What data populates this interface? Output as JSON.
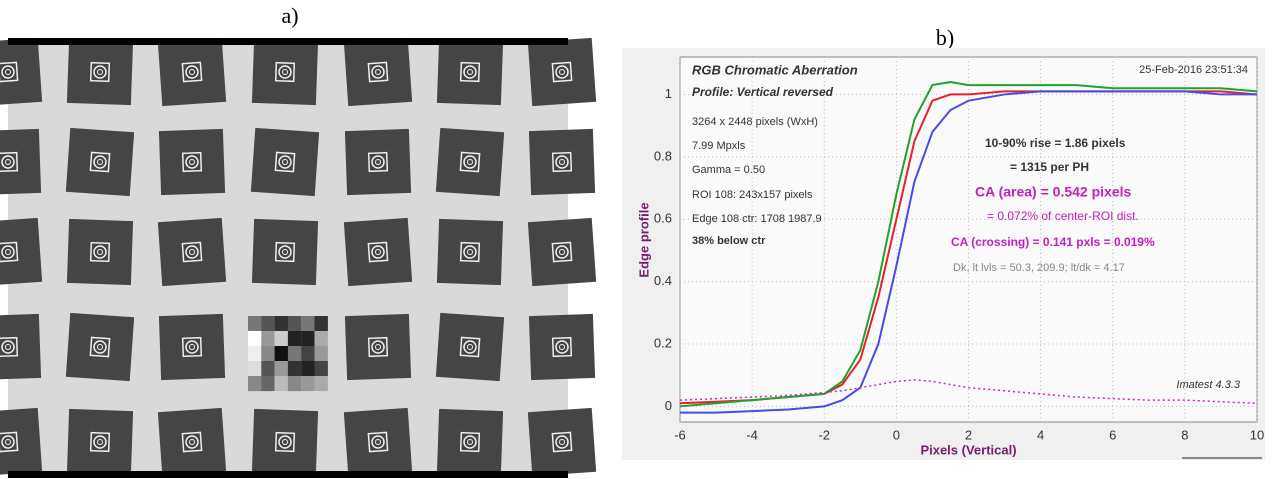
{
  "panel_labels": [
    "a)",
    "b)"
  ],
  "chart_data": {
    "type": "line",
    "title": "RGB Chromatic Aberration",
    "subtitle": "Profile: Vertical reversed",
    "xlabel": "Pixels (Vertical)",
    "ylabel": "Edge profile",
    "annotations": [
      "25-Feb-2016 23:51:34",
      "3264 x 2448 pixels (WxH)",
      "7.99 Mpxls",
      "Gamma = 0.50",
      "ROI 108: 243x157 pixels",
      "Edge 108 ctr: 1708  1987.9",
      "38% below ctr",
      "10-90% rise = 1.86 pixels",
      "= 1315 per PH",
      "CA (area) = 0.542 pixels",
      "= 0.072% of center-ROI dist.",
      "CA (crossing) = 0.141 pxls = 0.019%",
      "Dk, lt lvls = 50.3, 209.9;  lt/dk = 4.17",
      "Imatest 4.3.3"
    ],
    "x": [
      -6,
      -5,
      -4,
      -3,
      -2,
      -1.5,
      -1,
      -0.5,
      0,
      0.5,
      1,
      1.5,
      2,
      3,
      4,
      5,
      6,
      7,
      8,
      9,
      10
    ],
    "series": [
      {
        "color": "#e8202a",
        "style": "solid",
        "values": [
          0.01,
          0.015,
          0.02,
          0.03,
          0.04,
          0.07,
          0.15,
          0.35,
          0.6,
          0.85,
          0.98,
          1.0,
          1.0,
          1.01,
          1.01,
          1.01,
          1.01,
          1.01,
          1.01,
          1.01,
          1.0
        ]
      },
      {
        "color": "#1fa32a",
        "style": "solid",
        "values": [
          0.0,
          0.01,
          0.02,
          0.03,
          0.04,
          0.08,
          0.18,
          0.4,
          0.68,
          0.92,
          1.03,
          1.04,
          1.03,
          1.03,
          1.03,
          1.03,
          1.02,
          1.02,
          1.02,
          1.02,
          1.01
        ]
      },
      {
        "color": "#4a4ae8",
        "style": "solid",
        "values": [
          -0.02,
          -0.02,
          -0.015,
          -0.01,
          0.0,
          0.02,
          0.06,
          0.2,
          0.45,
          0.72,
          0.88,
          0.95,
          0.98,
          1.0,
          1.01,
          1.01,
          1.01,
          1.01,
          1.01,
          1.0,
          1.0
        ]
      },
      {
        "color": "#d020d0",
        "style": "dotted",
        "values": [
          0.02,
          0.025,
          0.03,
          0.035,
          0.045,
          0.05,
          0.06,
          0.07,
          0.08,
          0.085,
          0.08,
          0.07,
          0.06,
          0.05,
          0.04,
          0.03,
          0.025,
          0.02,
          0.02,
          0.015,
          0.01
        ]
      }
    ],
    "xlim": [
      -6,
      10
    ],
    "ylim": [
      -0.05,
      1.12
    ],
    "xticks": [
      -6,
      -4,
      -2,
      0,
      2,
      4,
      6,
      8,
      10
    ],
    "yticks": [
      0,
      0.2,
      0.4,
      0.6,
      0.8,
      1
    ],
    "grid": true
  }
}
